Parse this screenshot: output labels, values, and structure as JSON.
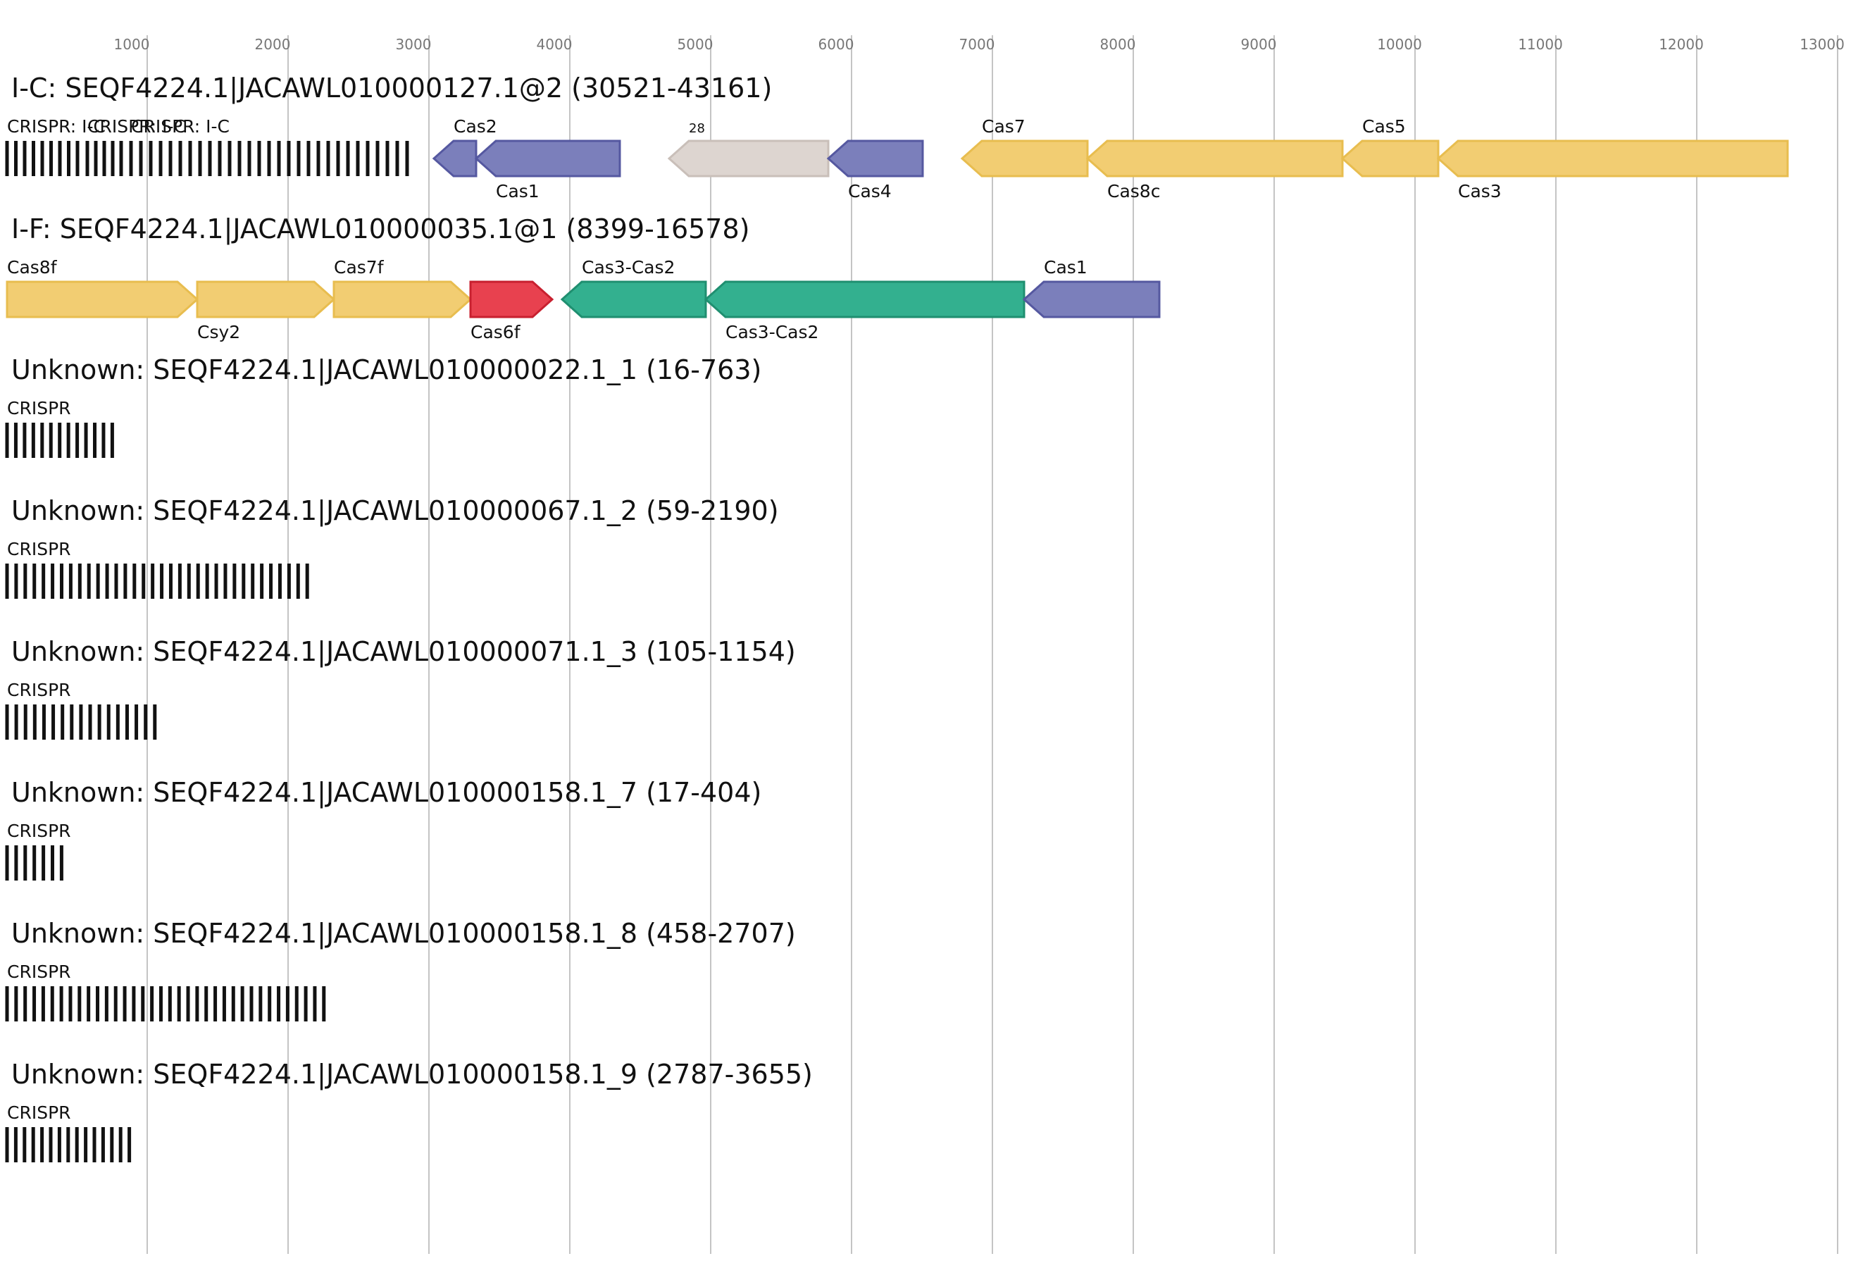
{
  "chart_data": {
    "type": "gene-locus-diagram",
    "x_ticks": [
      "1000",
      "2000",
      "3000",
      "4000",
      "5000",
      "6000",
      "7000",
      "8000",
      "9000",
      "10000",
      "11000",
      "12000",
      "13000"
    ],
    "loci": [
      {
        "title": "I-C: SEQF4224.1|JACAWL010000127.1@2 (30521-43161)",
        "crispr_arrays": [
          {
            "label": "CRISPR: I-C",
            "start": 0,
            "end": 500,
            "repeats": 9
          },
          {
            "label": "CRISPR: I-C",
            "start": 570,
            "end": 810,
            "repeats": 5
          },
          {
            "label": "CRISPR: I-C",
            "start": 880,
            "end": 2840,
            "repeats": 29
          }
        ],
        "genes": [
          {
            "name": "Cas2",
            "start": 3030,
            "end": 3330,
            "strand": "-",
            "color": "#7b7fbb",
            "label_pos": "above"
          },
          {
            "name": "Cas1",
            "start": 3330,
            "end": 4350,
            "strand": "-",
            "color": "#7b7fbb",
            "label_pos": "below"
          },
          {
            "name": "28",
            "start": 4700,
            "end": 5830,
            "strand": "-",
            "color": "#ddd5d0",
            "label_pos": "above",
            "small": true
          },
          {
            "name": "Cas4",
            "start": 5830,
            "end": 6500,
            "strand": "-",
            "color": "#7b7fbb",
            "label_pos": "below"
          },
          {
            "name": "Cas7",
            "start": 6780,
            "end": 7670,
            "strand": "-",
            "color": "#f2cd72",
            "label_pos": "above"
          },
          {
            "name": "Cas8c",
            "start": 7670,
            "end": 9480,
            "strand": "-",
            "color": "#f2cd72",
            "label_pos": "below"
          },
          {
            "name": "Cas5",
            "start": 9480,
            "end": 10160,
            "strand": "-",
            "color": "#f2cd72",
            "label_pos": "above"
          },
          {
            "name": "Cas3",
            "start": 10160,
            "end": 12640,
            "strand": "-",
            "color": "#f2cd72",
            "label_pos": "below"
          }
        ]
      },
      {
        "title": "I-F: SEQF4224.1|JACAWL010000035.1@1 (8399-16578)",
        "crispr_arrays": [],
        "genes": [
          {
            "name": "Cas8f",
            "start": 0,
            "end": 1350,
            "strand": "+",
            "color": "#f2cd72",
            "label_pos": "above"
          },
          {
            "name": "Csy2",
            "start": 1350,
            "end": 2320,
            "strand": "+",
            "color": "#f2cd72",
            "label_pos": "below"
          },
          {
            "name": "Cas7f",
            "start": 2320,
            "end": 3290,
            "strand": "+",
            "color": "#f2cd72",
            "label_pos": "above"
          },
          {
            "name": "Cas6f",
            "start": 3290,
            "end": 3870,
            "strand": "+",
            "color": "#e8414f",
            "label_pos": "below"
          },
          {
            "name": "Cas3-Cas2",
            "start": 3940,
            "end": 4960,
            "strand": "-",
            "color": "#33b08f",
            "label_pos": "above"
          },
          {
            "name": "Cas3-Cas2",
            "start": 4960,
            "end": 7220,
            "strand": "-",
            "color": "#33b08f",
            "label_pos": "below"
          },
          {
            "name": "Cas1",
            "start": 7220,
            "end": 8180,
            "strand": "-",
            "color": "#7b7fbb",
            "label_pos": "above"
          }
        ]
      },
      {
        "title": "Unknown: SEQF4224.1|JACAWL010000022.1_1 (16-763)",
        "crispr_arrays": [
          {
            "label": "CRISPR",
            "start": 0,
            "end": 747,
            "repeats": 13
          }
        ],
        "genes": []
      },
      {
        "title": "Unknown: SEQF4224.1|JACAWL010000067.1_2 (59-2190)",
        "crispr_arrays": [
          {
            "label": "CRISPR",
            "start": 0,
            "end": 2131,
            "repeats": 34
          }
        ],
        "genes": []
      },
      {
        "title": "Unknown: SEQF4224.1|JACAWL010000071.1_3 (105-1154)",
        "crispr_arrays": [
          {
            "label": "CRISPR",
            "start": 0,
            "end": 1049,
            "repeats": 17
          }
        ],
        "genes": []
      },
      {
        "title": "Unknown: SEQF4224.1|JACAWL010000158.1_7 (17-404)",
        "crispr_arrays": [
          {
            "label": "CRISPR",
            "start": 0,
            "end": 387,
            "repeats": 7
          }
        ],
        "genes": []
      },
      {
        "title": "Unknown: SEQF4224.1|JACAWL010000158.1_8 (458-2707)",
        "crispr_arrays": [
          {
            "label": "CRISPR",
            "start": 0,
            "end": 2249,
            "repeats": 36
          }
        ],
        "genes": []
      },
      {
        "title": "Unknown: SEQF4224.1|JACAWL010000158.1_9 (2787-3655)",
        "crispr_arrays": [
          {
            "label": "CRISPR",
            "start": 0,
            "end": 868,
            "repeats": 15
          }
        ],
        "genes": []
      }
    ]
  }
}
